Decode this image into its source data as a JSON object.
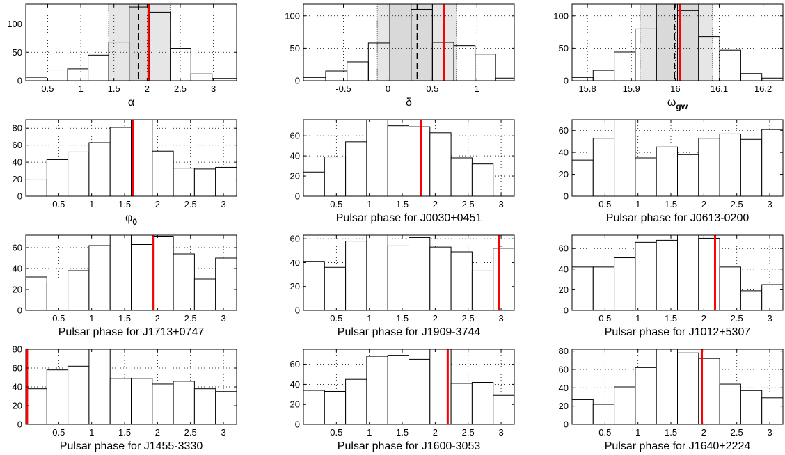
{
  "figure": {
    "title": ""
  },
  "chart_data": [
    {
      "type": "bar",
      "xlabel": "α",
      "xlabel_sub": "",
      "xlim": [
        0.17,
        3.35
      ],
      "ylim": [
        0,
        135
      ],
      "xticks": [
        0.5,
        1,
        1.5,
        2,
        2.5,
        3
      ],
      "yticks": [
        0,
        50,
        100
      ],
      "bin_edges": [
        0.17,
        0.49,
        0.8,
        1.11,
        1.42,
        1.73,
        2.04,
        2.35,
        2.66,
        2.98,
        3.35
      ],
      "values": [
        6,
        19,
        21,
        45,
        68,
        130,
        121,
        57,
        12,
        4
      ],
      "band_outer": [
        1.42,
        2.35
      ],
      "band_inner": [
        1.73,
        2.04
      ],
      "dashed_line": 1.87,
      "red_line": 2.02,
      "grid": true
    },
    {
      "type": "bar",
      "xlabel": "δ",
      "xlabel_sub": "",
      "xlim": [
        -0.95,
        1.42
      ],
      "ylim": [
        0,
        118
      ],
      "xticks": [
        -0.5,
        0,
        0.5,
        1
      ],
      "yticks": [
        0,
        50,
        100
      ],
      "bin_edges": [
        -0.95,
        -0.7,
        -0.46,
        -0.22,
        0.02,
        0.26,
        0.5,
        0.74,
        0.98,
        1.21,
        1.42
      ],
      "values": [
        5,
        15,
        29,
        58,
        132,
        110,
        59,
        54,
        41,
        4
      ],
      "band_outer": [
        -0.12,
        0.77
      ],
      "band_inner": [
        0.02,
        0.5
      ],
      "dashed_line": 0.33,
      "red_line": 0.63,
      "grid": true
    },
    {
      "type": "bar",
      "xlabel": "ω",
      "xlabel_sub": "gw",
      "xlim": [
        15.765,
        16.245
      ],
      "ylim": [
        0,
        118
      ],
      "xticks": [
        15.8,
        15.9,
        16,
        16.1,
        16.2
      ],
      "yticks": [
        0,
        50,
        100
      ],
      "bin_edges": [
        15.765,
        15.813,
        15.861,
        15.909,
        15.957,
        16.005,
        16.053,
        16.101,
        16.149,
        16.197,
        16.245
      ],
      "values": [
        5,
        16,
        44,
        80,
        126,
        108,
        68,
        47,
        11,
        4
      ],
      "band_outer": [
        15.92,
        16.085
      ],
      "band_inner": [
        15.957,
        16.053
      ],
      "dashed_line": 15.998,
      "red_line": 16.01,
      "grid": true
    },
    {
      "type": "bar",
      "xlabel": "φ",
      "xlabel_sub": "0",
      "xlim": [
        0,
        3.2
      ],
      "ylim": [
        0,
        90
      ],
      "xticks": [
        0.5,
        1,
        1.5,
        2,
        2.5,
        3
      ],
      "yticks": [
        0,
        20,
        40,
        60,
        80
      ],
      "bin_edges": [
        0,
        0.32,
        0.64,
        0.96,
        1.28,
        1.6,
        1.92,
        2.24,
        2.56,
        2.88,
        3.2
      ],
      "values": [
        20,
        43,
        52,
        63,
        81,
        95,
        53,
        33,
        32,
        34
      ],
      "red_line": 1.63,
      "grid": true
    },
    {
      "type": "bar",
      "xlabel": "Pulsar phase for J0030+0451",
      "xlabel_sub": "",
      "xlim": [
        0,
        3.2
      ],
      "ylim": [
        0,
        76
      ],
      "xticks": [
        0.5,
        1,
        1.5,
        2,
        2.5,
        3
      ],
      "yticks": [
        0,
        20,
        40,
        60
      ],
      "bin_edges": [
        0,
        0.32,
        0.64,
        0.96,
        1.28,
        1.6,
        1.92,
        2.24,
        2.56,
        2.88,
        3.2
      ],
      "values": [
        24,
        39,
        54,
        82,
        70,
        69,
        63,
        38,
        32,
        0
      ],
      "red_line": 1.79,
      "grid": true
    },
    {
      "type": "bar",
      "xlabel": "Pulsar phase for J0613-0200",
      "xlabel_sub": "",
      "xlim": [
        0,
        3.2
      ],
      "ylim": [
        0,
        70
      ],
      "xticks": [
        0.5,
        1,
        1.5,
        2,
        2.5,
        3
      ],
      "yticks": [
        0,
        20,
        40,
        60
      ],
      "bin_edges": [
        0,
        0.32,
        0.64,
        0.96,
        1.28,
        1.6,
        1.92,
        2.24,
        2.56,
        2.88,
        3.2
      ],
      "values": [
        33,
        53,
        75,
        35,
        45,
        38,
        53,
        57,
        52,
        61
      ],
      "grid": true
    },
    {
      "type": "bar",
      "xlabel": "Pulsar phase for J1713+0747",
      "xlabel_sub": "",
      "xlim": [
        0,
        3.2
      ],
      "ylim": [
        0,
        72
      ],
      "xticks": [
        0.5,
        1,
        1.5,
        2,
        2.5,
        3
      ],
      "yticks": [
        0,
        20,
        40,
        60
      ],
      "bin_edges": [
        0,
        0.32,
        0.64,
        0.96,
        1.28,
        1.6,
        1.92,
        2.24,
        2.56,
        2.88,
        3.2
      ],
      "values": [
        32,
        27,
        38,
        62,
        80,
        63,
        71,
        54,
        30,
        50
      ],
      "red_line": 1.94,
      "grid": true
    },
    {
      "type": "bar",
      "xlabel": "Pulsar phase for J1909-3744",
      "xlabel_sub": "",
      "xlim": [
        0,
        3.2
      ],
      "ylim": [
        0,
        63
      ],
      "xticks": [
        0.5,
        1,
        1.5,
        2,
        2.5,
        3
      ],
      "yticks": [
        0,
        20,
        40,
        60
      ],
      "bin_edges": [
        0,
        0.32,
        0.64,
        0.96,
        1.28,
        1.6,
        1.92,
        2.24,
        2.56,
        2.88,
        3.2
      ],
      "values": [
        41,
        36,
        58,
        66,
        54,
        61,
        53,
        49,
        33,
        52
      ],
      "red_line": 2.97,
      "grid": true
    },
    {
      "type": "bar",
      "xlabel": "Pulsar phase for J1012+5307",
      "xlabel_sub": "",
      "xlim": [
        0,
        3.2
      ],
      "ylim": [
        0,
        73
      ],
      "xticks": [
        0.5,
        1,
        1.5,
        2,
        2.5,
        3
      ],
      "yticks": [
        0,
        20,
        40,
        60
      ],
      "bin_edges": [
        0,
        0.32,
        0.64,
        0.96,
        1.28,
        1.6,
        1.92,
        2.24,
        2.56,
        2.88,
        3.2
      ],
      "values": [
        42,
        42,
        51,
        66,
        68,
        76,
        70,
        42,
        19,
        25
      ],
      "red_line": 2.17,
      "grid": true
    },
    {
      "type": "bar",
      "xlabel": "Pulsar phase for J1455-3330",
      "xlabel_sub": "",
      "xlim": [
        0,
        3.2
      ],
      "ylim": [
        0,
        80
      ],
      "xticks": [
        0.5,
        1,
        1.5,
        2,
        2.5,
        3
      ],
      "yticks": [
        0,
        20,
        40,
        60,
        80
      ],
      "bin_edges": [
        0,
        0.32,
        0.64,
        0.96,
        1.28,
        1.6,
        1.92,
        2.24,
        2.56,
        2.88,
        3.2
      ],
      "values": [
        38,
        58,
        62,
        85,
        49,
        49,
        43,
        46,
        38,
        35
      ],
      "red_line": 0.02,
      "grid": true
    },
    {
      "type": "bar",
      "xlabel": "Pulsar phase for J1600-3053",
      "xlabel_sub": "",
      "xlim": [
        0,
        3.2
      ],
      "ylim": [
        0,
        75
      ],
      "xticks": [
        0.5,
        1,
        1.5,
        2,
        2.5,
        3
      ],
      "yticks": [
        0,
        20,
        40,
        60
      ],
      "bin_edges": [
        0,
        0.32,
        0.64,
        0.96,
        1.28,
        1.6,
        1.92,
        2.24,
        2.56,
        2.88,
        3.2
      ],
      "values": [
        34,
        33,
        45,
        68,
        69,
        65,
        79,
        41,
        42,
        29
      ],
      "red_line": 2.19,
      "grid": true
    },
    {
      "type": "bar",
      "xlabel": "Pulsar phase for J1640+2224",
      "xlabel_sub": "",
      "xlim": [
        0,
        3.2
      ],
      "ylim": [
        0,
        82
      ],
      "xticks": [
        0.5,
        1,
        1.5,
        2,
        2.5,
        3
      ],
      "yticks": [
        0,
        20,
        40,
        60,
        80
      ],
      "bin_edges": [
        0,
        0.32,
        0.64,
        0.96,
        1.28,
        1.6,
        1.92,
        2.24,
        2.56,
        2.88,
        3.2
      ],
      "values": [
        27,
        22,
        41,
        62,
        84,
        78,
        72,
        44,
        37,
        29
      ],
      "red_line": 1.97,
      "grid": true
    }
  ]
}
